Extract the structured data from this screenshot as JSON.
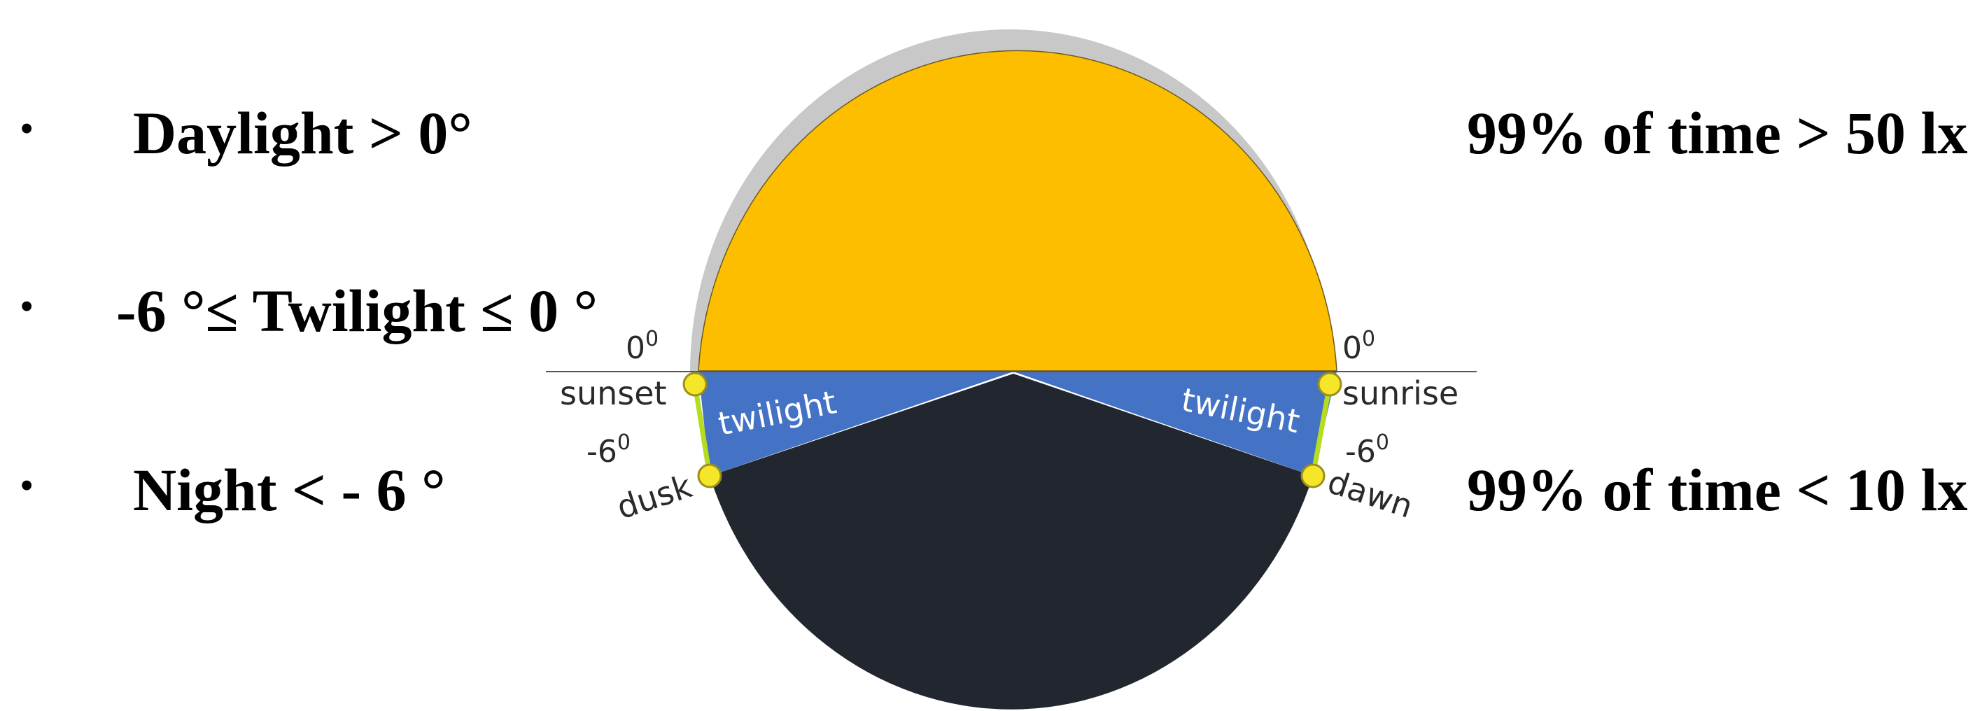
{
  "bullets": [
    {
      "text": "Daylight > 0°"
    },
    {
      "text": "-6 °≤ Twilight ≤ 0 °"
    },
    {
      "text": "Night < - 6 °"
    }
  ],
  "right_notes": {
    "day": "99% of time > 50 lx",
    "night": "99% of time < 10 lx"
  },
  "diagram": {
    "left": {
      "angle0": "0",
      "angle0_sup": "0",
      "event0": "sunset",
      "angle6": "-6",
      "angle6_sup": "0",
      "event6": "dusk",
      "band": "twilight"
    },
    "right": {
      "angle0": "0",
      "angle0_sup": "0",
      "event0": "sunrise",
      "angle6": "-6",
      "angle6_sup": "0",
      "event6": "dawn",
      "band": "twilight"
    },
    "colors": {
      "day": "#FDBE00",
      "twilight": "#4472C4",
      "night": "#21262F",
      "edge": "#B5DC1E",
      "marker": "#F5E62A"
    }
  }
}
